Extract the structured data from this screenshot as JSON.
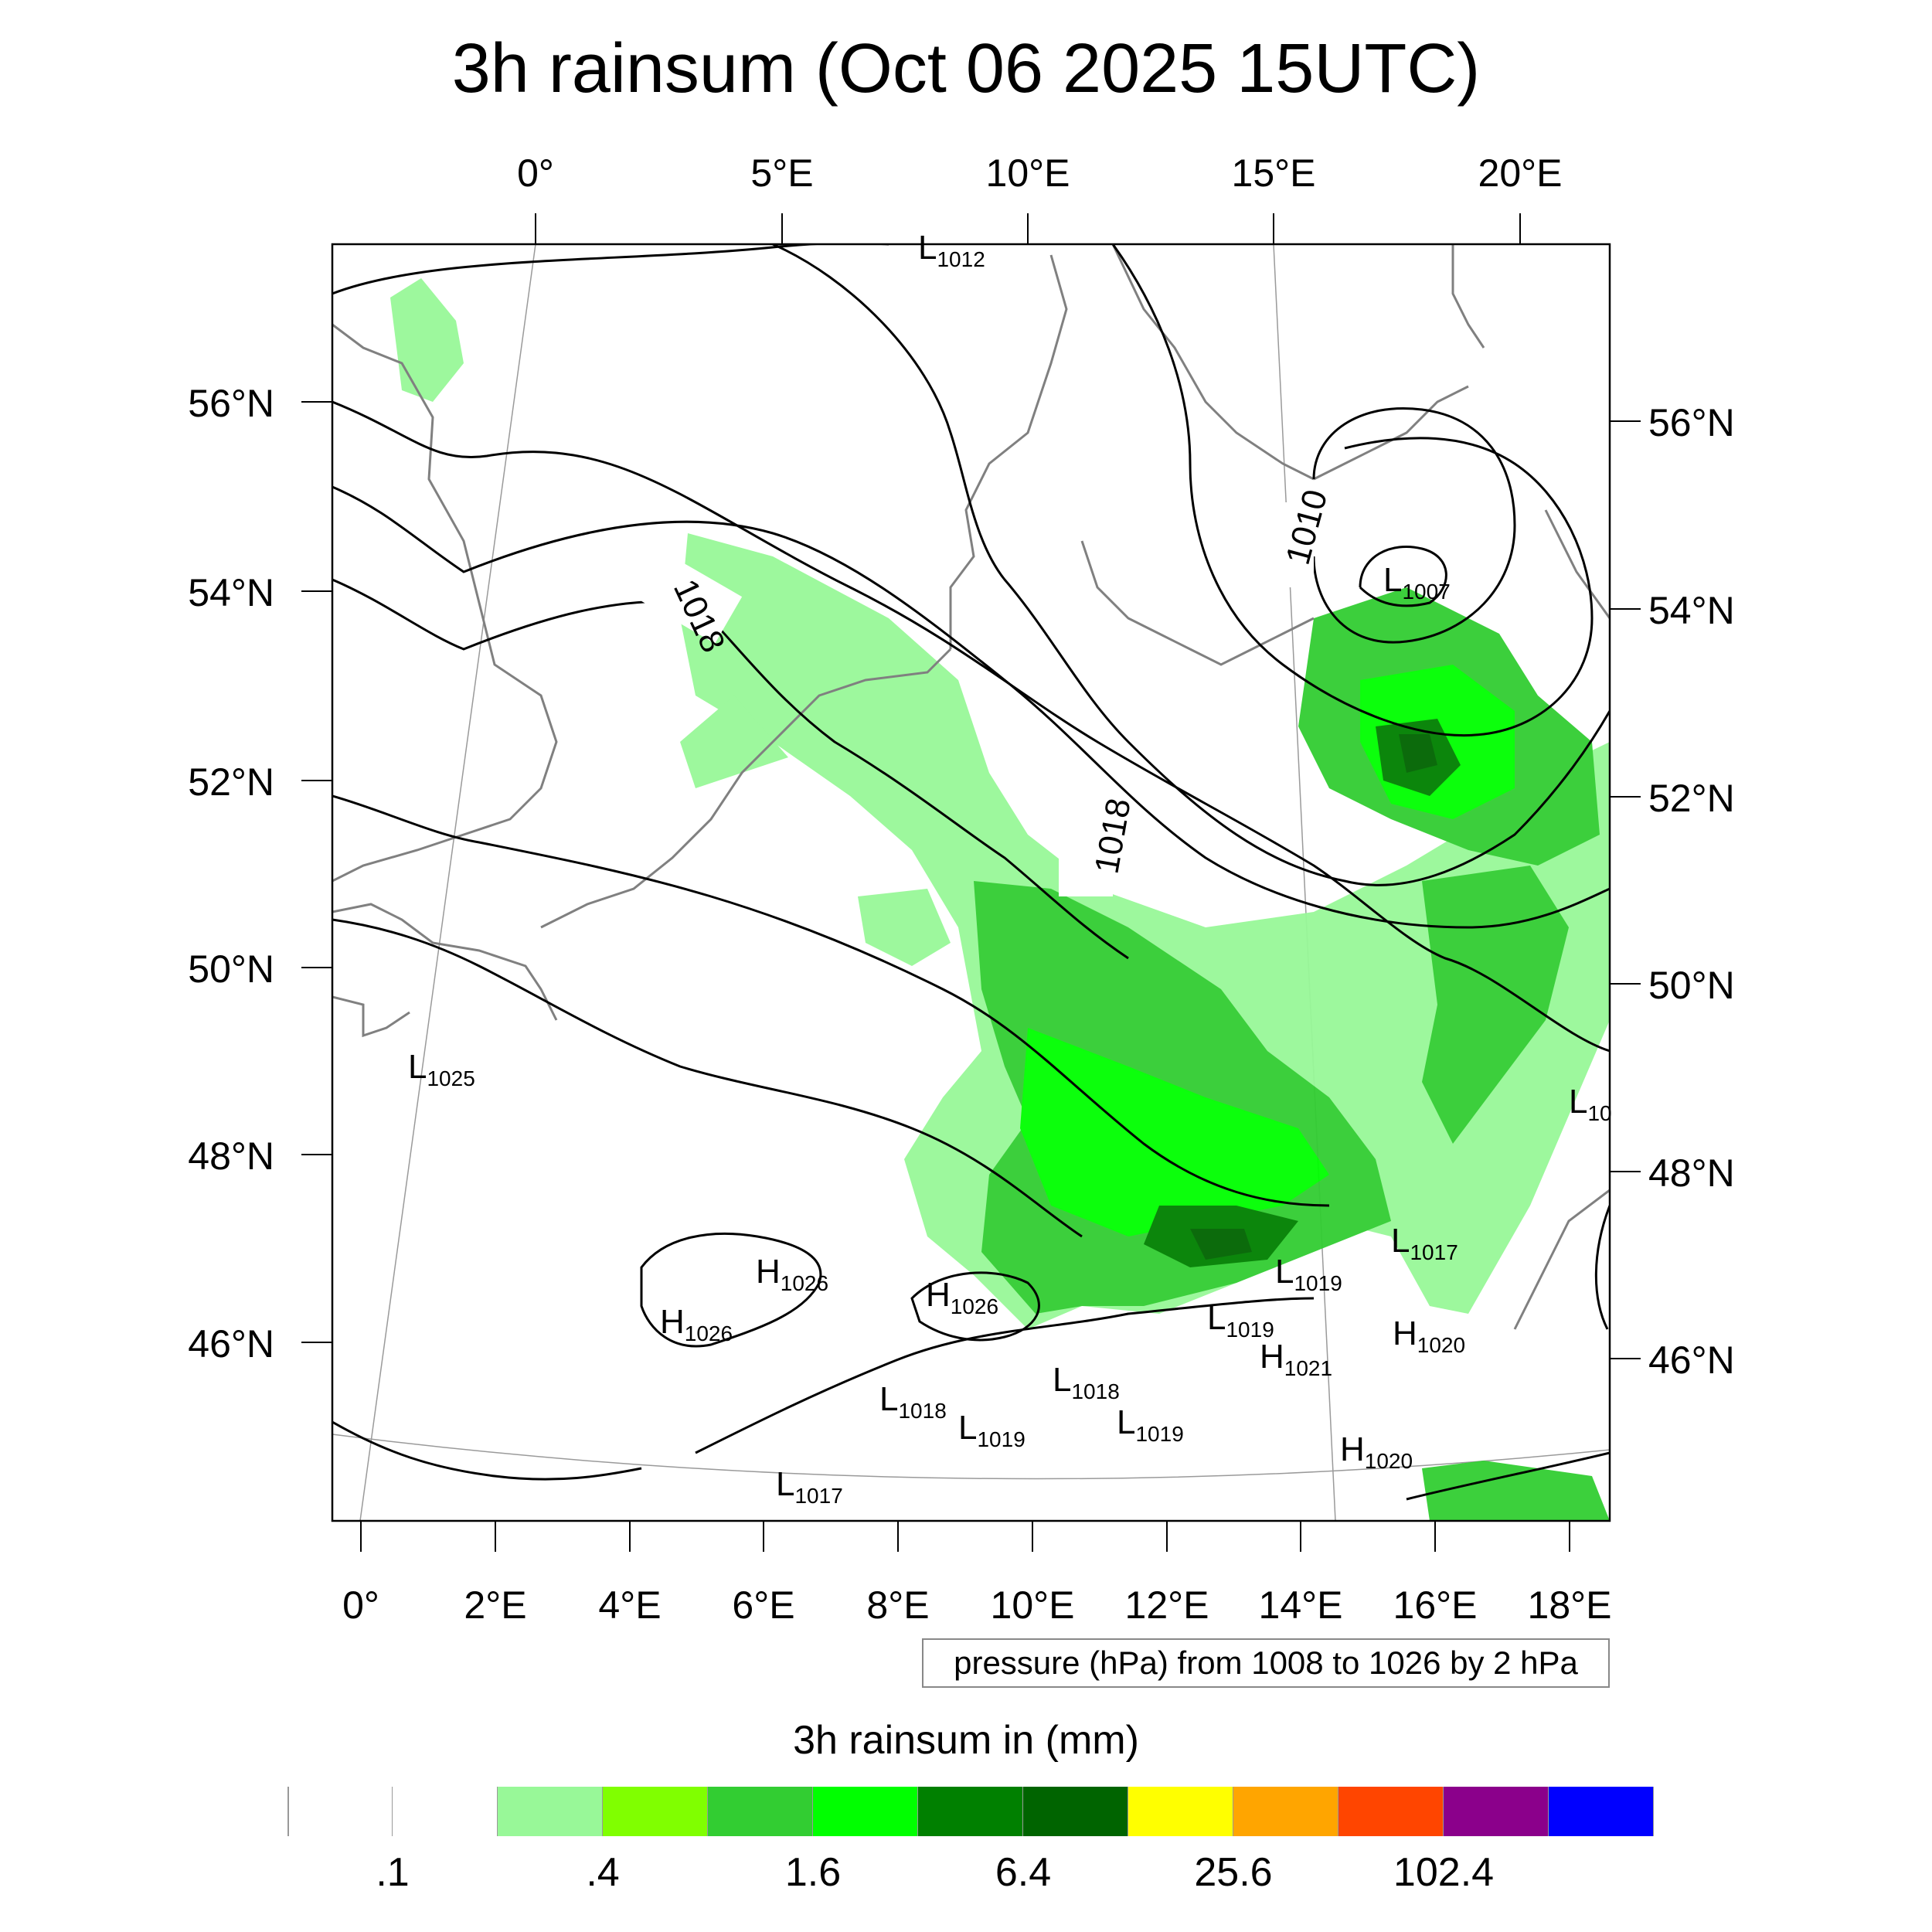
{
  "title": "3h rainsum (Oct 06 2025 15UTC)",
  "top_lon_labels": [
    "0°",
    "5°E",
    "10°E",
    "15°E",
    "20°E"
  ],
  "bottom_lon_labels": [
    "0°",
    "2°E",
    "4°E",
    "6°E",
    "8°E",
    "10°E",
    "12°E",
    "14°E",
    "16°E",
    "18°E"
  ],
  "left_lat_labels": [
    "56°N",
    "54°N",
    "52°N",
    "50°N",
    "48°N",
    "46°N"
  ],
  "right_lat_labels": [
    "56°N",
    "54°N",
    "52°N",
    "50°N",
    "48°N",
    "46°N"
  ],
  "isobar_labels": [
    "1018",
    "1018",
    "1010"
  ],
  "pressure_centers": [
    {
      "letter": "L",
      "value": "1012"
    },
    {
      "letter": "L",
      "value": "1007"
    },
    {
      "letter": "L",
      "value": "1025"
    },
    {
      "letter": "L",
      "value": "10"
    },
    {
      "letter": "L",
      "value": "1017"
    },
    {
      "letter": "L",
      "value": "1019"
    },
    {
      "letter": "L",
      "value": "1019"
    },
    {
      "letter": "H",
      "value": "1020"
    },
    {
      "letter": "H",
      "value": "1021"
    },
    {
      "letter": "H",
      "value": "1026"
    },
    {
      "letter": "H",
      "value": "1026"
    },
    {
      "letter": "H",
      "value": "1026"
    },
    {
      "letter": "L",
      "value": "1018"
    },
    {
      "letter": "L",
      "value": "1018"
    },
    {
      "letter": "L",
      "value": "1019"
    },
    {
      "letter": "L",
      "value": "1019"
    },
    {
      "letter": "L",
      "value": "1017"
    },
    {
      "letter": "H",
      "value": "1020"
    }
  ],
  "info_box": "pressure (hPa) from 1008 to 1026 by 2 hPa",
  "colorbar": {
    "title": "3h rainsum in (mm)",
    "colors": [
      "#ffffff",
      "#ffffff",
      "#98f898",
      "#80ff00",
      "#32cd32",
      "#00ff00",
      "#008000",
      "#006400",
      "#ffff00",
      "#ffa500",
      "#ff4500",
      "#8b008b",
      "#0000ff"
    ],
    "tick_labels": [
      ".1",
      ".4",
      "1.6",
      "6.4",
      "25.6",
      "102.4"
    ]
  },
  "colors": {
    "coast": "#808080",
    "isobar": "#000000",
    "grid": "#9a9a9a"
  }
}
